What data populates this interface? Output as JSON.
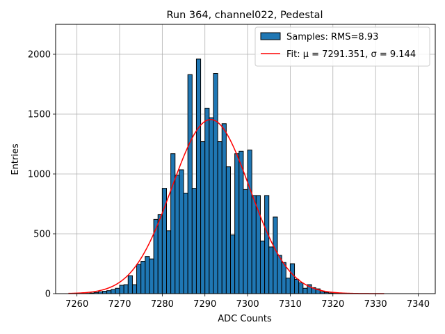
{
  "chart_data": {
    "type": "bar",
    "title": "Run 364, channel022, Pedestal",
    "xlabel": "ADC Counts",
    "ylabel": "Entries",
    "xlim": [
      7255,
      7344
    ],
    "ylim": [
      0,
      2250
    ],
    "xticks": [
      7260,
      7270,
      7280,
      7290,
      7300,
      7310,
      7320,
      7330,
      7340
    ],
    "yticks": [
      0,
      500,
      1000,
      1500,
      2000
    ],
    "grid": true,
    "legend_position": "top-right",
    "bin_width": 1,
    "bins": {
      "x_start": [
        7258,
        7259,
        7260,
        7261,
        7262,
        7263,
        7264,
        7265,
        7266,
        7267,
        7268,
        7269,
        7270,
        7271,
        7272,
        7273,
        7274,
        7275,
        7276,
        7277,
        7278,
        7279,
        7280,
        7281,
        7282,
        7283,
        7284,
        7285,
        7286,
        7287,
        7288,
        7289,
        7290,
        7291,
        7292,
        7293,
        7294,
        7295,
        7296,
        7297,
        7298,
        7299,
        7300,
        7301,
        7302,
        7303,
        7304,
        7305,
        7306,
        7307,
        7308,
        7309,
        7310,
        7311,
        7312,
        7313,
        7314,
        7315,
        7316,
        7317,
        7318,
        7319,
        7320,
        7321,
        7322,
        7323,
        7324,
        7325,
        7326,
        7327,
        7328,
        7329,
        7330,
        7331
      ],
      "counts": [
        0,
        0,
        0,
        0,
        2,
        5,
        10,
        15,
        20,
        25,
        35,
        45,
        70,
        75,
        150,
        75,
        245,
        270,
        310,
        290,
        620,
        660,
        880,
        525,
        1170,
        990,
        1035,
        840,
        1830,
        880,
        1960,
        1270,
        1550,
        1470,
        1840,
        1270,
        1420,
        1060,
        490,
        1170,
        1190,
        870,
        1200,
        820,
        820,
        440,
        820,
        390,
        640,
        320,
        260,
        130,
        250,
        120,
        90,
        45,
        75,
        50,
        40,
        15,
        10,
        5,
        2,
        0,
        0,
        0,
        0,
        0,
        0,
        0,
        0,
        0,
        0,
        0
      ],
      "face_color": "#1f77b4",
      "edge_color": "#000000"
    },
    "series": [
      {
        "name": "Samples: RMS=8.93",
        "kind": "histogram",
        "color": "#1f77b4"
      },
      {
        "name": "Fit: μ = 7291.351, σ = 9.144",
        "kind": "gaussian-fit",
        "color": "#ff0000",
        "mu": 7291.351,
        "sigma": 9.144,
        "amplitude": 1455,
        "x_range": [
          7258,
          7332
        ]
      }
    ]
  }
}
